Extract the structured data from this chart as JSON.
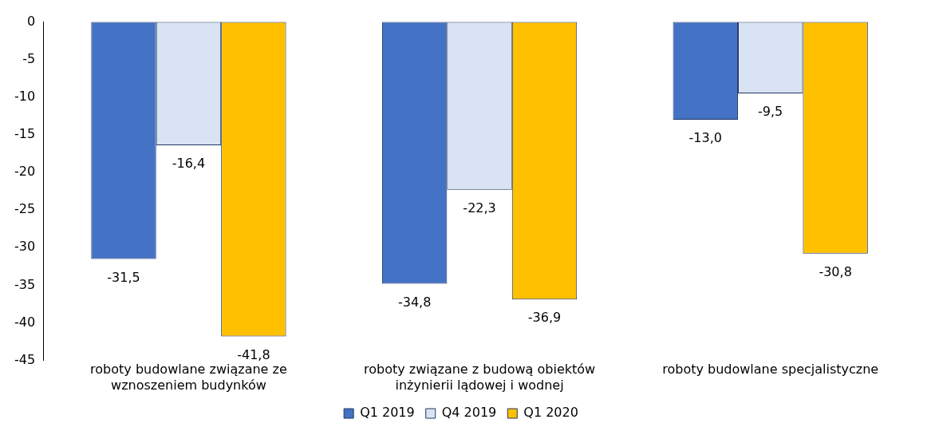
{
  "chart_data": {
    "type": "bar",
    "categories": [
      "roboty budowlane związane ze wznoszeniem budynków",
      "roboty związane z budową obiektów inżynierii lądowej i wodnej",
      "roboty budowlane specjalistyczne"
    ],
    "series": [
      {
        "name": "Q1 2019",
        "color": "#4472c4",
        "values": [
          -31.5,
          -34.8,
          -13.0
        ],
        "value_labels": [
          "-31,5",
          "-34,8",
          "-13,0"
        ]
      },
      {
        "name": "Q4 2019",
        "color": "#dae3f3",
        "values": [
          -16.4,
          -22.3,
          -9.5
        ],
        "value_labels": [
          "-16,4",
          "-22,3",
          "-9,5"
        ]
      },
      {
        "name": "Q1 2020",
        "color": "#ffc000",
        "values": [
          -41.8,
          -36.9,
          -30.8
        ],
        "value_labels": [
          "-41,8",
          "-36,9",
          "-30,8"
        ]
      }
    ],
    "ylim": [
      -45,
      0
    ],
    "yticks": [
      0,
      -5,
      -10,
      -15,
      -20,
      -25,
      -30,
      -35,
      -40,
      -45
    ],
    "grid": false,
    "legend": "bottom"
  }
}
